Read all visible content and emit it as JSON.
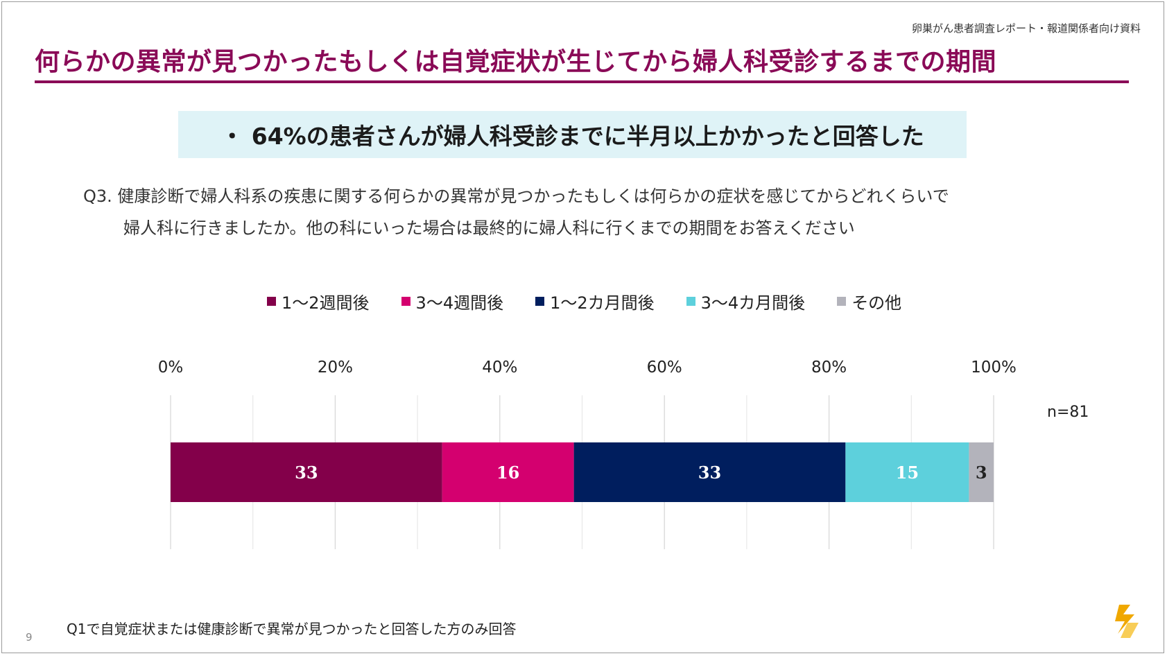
{
  "header": {
    "report_label": "卵巣がん患者調査レポート・報道関係者向け資料",
    "title": "何らかの異常が見つかったもしくは自覚症状が生じてから婦人科受診するまでの期間"
  },
  "summary": "・ 64%の患者さんが婦人科受診までに半月以上かかったと回答した",
  "question": {
    "line1": "Q3. 健康診断で婦人科系の疾患に関する何らかの異常が見つかったもしくは何らかの症状を感じてからどれくらいで",
    "line2": "婦人科に行きましたか。他の科にいった場合は最終的に婦人科に行くまでの期間をお答えください"
  },
  "sample_size": "n=81",
  "footnote": "Q1で自覚症状または健康診断で異常が見つかったと回答した方のみ回答",
  "page_number": "9",
  "colors": {
    "accent": "#8a0a57",
    "summary_bg": "#dff3f7"
  },
  "icons": {
    "logo": "company-logo-icon"
  },
  "chart_data": {
    "type": "bar",
    "orientation": "horizontal-stacked-100",
    "xlim": [
      0,
      100
    ],
    "ticks": [
      "0%",
      "20%",
      "40%",
      "60%",
      "80%",
      "100%"
    ],
    "tick_values": [
      0,
      20,
      40,
      60,
      80,
      100
    ],
    "grid": true,
    "legend_position": "top",
    "series": [
      {
        "name": "1～2週間後",
        "value": 33,
        "color": "#83004a"
      },
      {
        "name": "3～4週間後",
        "value": 16,
        "color": "#d4006f"
      },
      {
        "name": "1～2カ月間後",
        "value": 33,
        "color": "#001e5e"
      },
      {
        "name": "3～4カ月間後",
        "value": 15,
        "color": "#5dd0dc"
      },
      {
        "name": "その他",
        "value": 3,
        "color": "#b3b3bb"
      }
    ]
  }
}
